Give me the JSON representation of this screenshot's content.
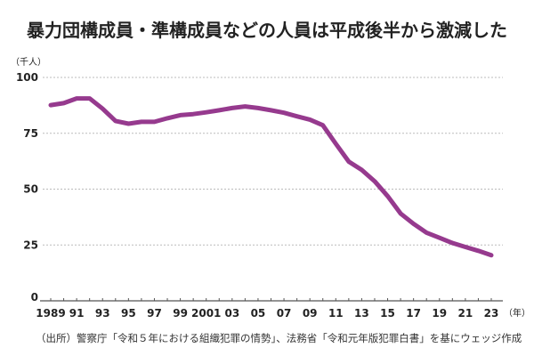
{
  "title": "暴力団構成員・準構成員などの人員は平成後半から激減した",
  "source": "（出所）警察庁「令和５年における組織犯罪の情勢」、法務省「令和元年版犯罪白書」を基にウェッジ作成",
  "chart_data": {
    "type": "line",
    "title": "暴力団構成員・準構成員などの人員は平成後半から激減した",
    "ylabel": "（千人）",
    "xlabel": "（年）",
    "ylim": [
      0,
      100
    ],
    "yticks": [
      0,
      25,
      50,
      75,
      100
    ],
    "grid": true,
    "x": [
      1989,
      1990,
      1991,
      1992,
      1993,
      1994,
      1995,
      1996,
      1997,
      1998,
      1999,
      2000,
      2001,
      2002,
      2003,
      2004,
      2005,
      2006,
      2007,
      2008,
      2009,
      2010,
      2011,
      2012,
      2013,
      2014,
      2015,
      2016,
      2017,
      2018,
      2019,
      2020,
      2021,
      2022,
      2023
    ],
    "xtick_labels": [
      {
        "x": 1989,
        "label": "1989"
      },
      {
        "x": 1991,
        "label": "91"
      },
      {
        "x": 1993,
        "label": "93"
      },
      {
        "x": 1995,
        "label": "95"
      },
      {
        "x": 1997,
        "label": "97"
      },
      {
        "x": 1999,
        "label": "99"
      },
      {
        "x": 2001,
        "label": "2001"
      },
      {
        "x": 2003,
        "label": "03"
      },
      {
        "x": 2005,
        "label": "05"
      },
      {
        "x": 2007,
        "label": "07"
      },
      {
        "x": 2009,
        "label": "09"
      },
      {
        "x": 2011,
        "label": "11"
      },
      {
        "x": 2013,
        "label": "13"
      },
      {
        "x": 2015,
        "label": "15"
      },
      {
        "x": 2017,
        "label": "17"
      },
      {
        "x": 2019,
        "label": "19"
      },
      {
        "x": 2021,
        "label": "21"
      },
      {
        "x": 2023,
        "label": "23"
      }
    ],
    "series": [
      {
        "name": "暴力団構成員・準構成員など",
        "color": "#963a8e",
        "values": [
          87.6,
          88.5,
          90.6,
          90.6,
          86.0,
          80.5,
          79.3,
          80.1,
          80.1,
          81.7,
          83.1,
          83.6,
          84.4,
          85.3,
          86.3,
          87.0,
          86.3,
          85.3,
          84.2,
          82.6,
          81.1,
          78.6,
          70.3,
          62.3,
          58.6,
          53.5,
          46.9,
          39.1,
          34.5,
          30.5,
          28.2,
          25.9,
          24.1,
          22.4,
          20.4
        ]
      }
    ]
  }
}
